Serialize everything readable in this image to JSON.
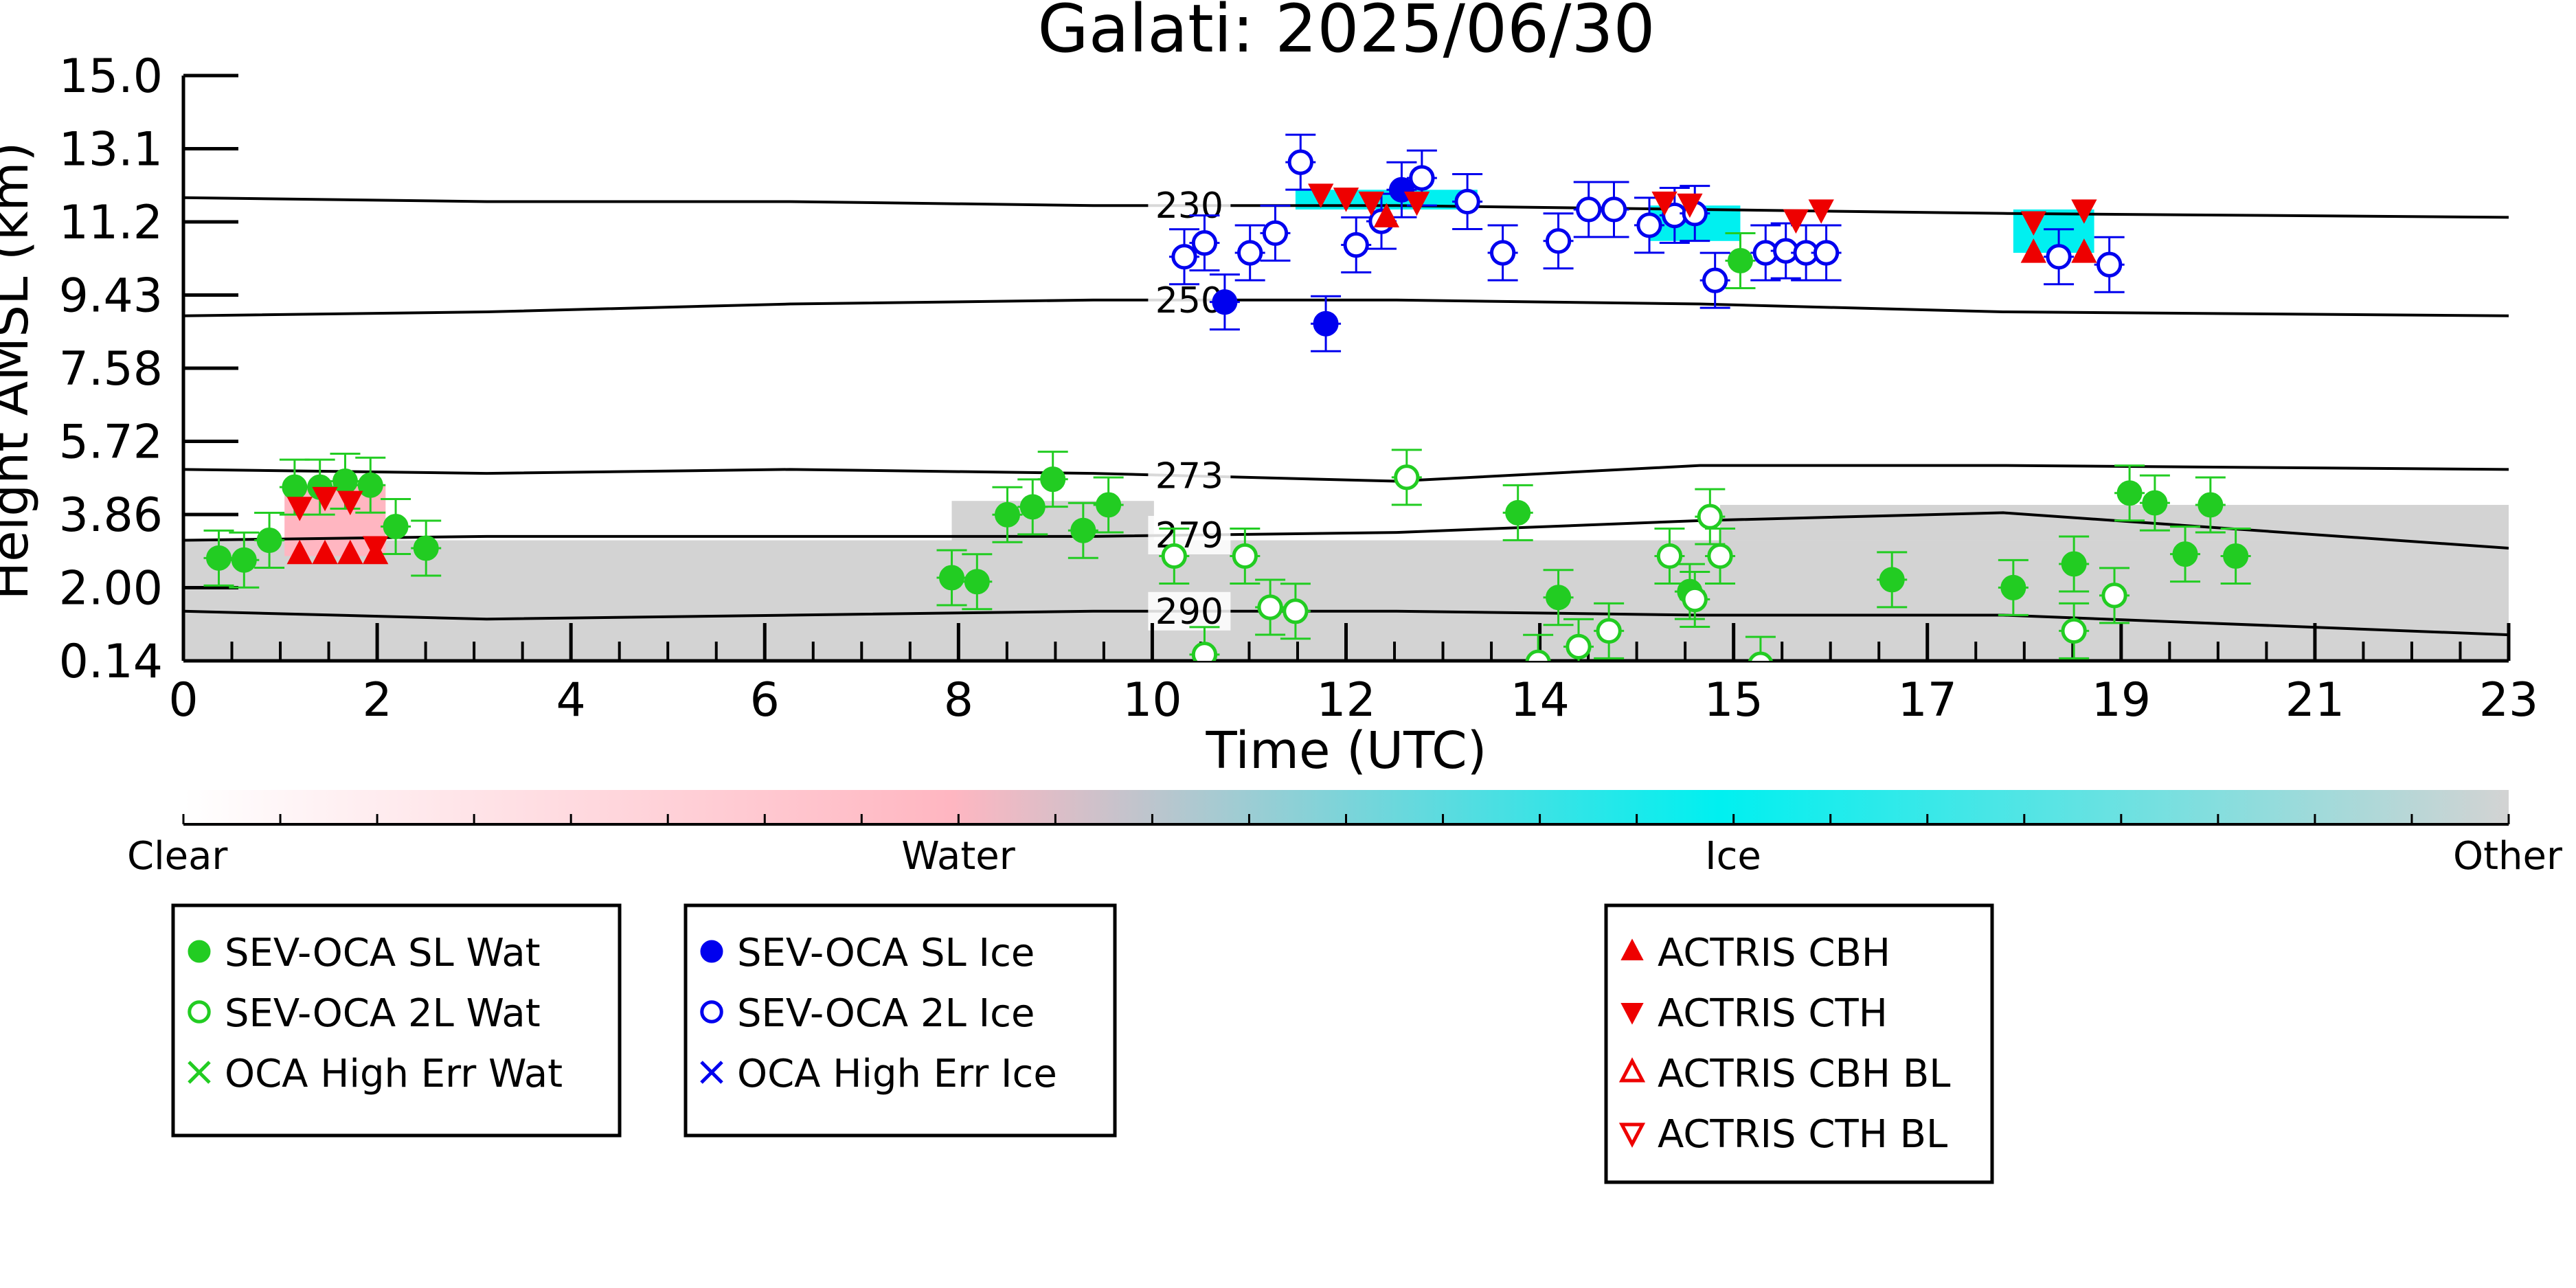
{
  "chart_data": {
    "type": "scatter",
    "title": "Galati: 2025/06/30",
    "xlabel": "Time (UTC)",
    "ylabel": "Height AMSL (km)",
    "xlim": [
      0,
      23
    ],
    "ylim": [
      0.14,
      15.0
    ],
    "x_ticks": [
      "0",
      "2",
      "4",
      "6",
      "8",
      "10",
      "12",
      "14",
      "15",
      "17",
      "19",
      "21",
      "23"
    ],
    "y_ticks": [
      "0.14",
      "2.00",
      "3.86",
      "5.72",
      "7.58",
      "9.43",
      "11.2",
      "13.1",
      "15.0"
    ],
    "colorbar": {
      "labels": [
        "Clear",
        "Water",
        "Ice",
        "Other"
      ],
      "colors": [
        "#ffffff",
        "#ffb6c1",
        "#00f0f0",
        "#d3d3d3"
      ]
    },
    "isotherms": [
      {
        "label": "230",
        "y": [
          11.9,
          11.8,
          11.8,
          11.7,
          11.7,
          11.6,
          11.5,
          11.4
        ]
      },
      {
        "label": "250",
        "y": [
          8.9,
          9.0,
          9.2,
          9.3,
          9.3,
          9.2,
          9.0,
          8.9
        ]
      },
      {
        "label": "273",
        "y": [
          5.0,
          4.9,
          5.0,
          4.9,
          4.7,
          5.1,
          5.1,
          5.0
        ]
      },
      {
        "label": "279",
        "y": [
          3.2,
          3.3,
          3.3,
          3.3,
          3.4,
          3.7,
          3.9,
          3.0
        ]
      },
      {
        "label": "290",
        "y": [
          1.4,
          1.2,
          1.3,
          1.4,
          1.4,
          1.3,
          1.3,
          0.8
        ]
      }
    ],
    "isotherm_x": [
      0,
      3,
      6,
      9,
      12,
      15,
      18,
      23
    ],
    "series": [
      {
        "name": "SEV-OCA SL Wat",
        "color": "#22cc22",
        "marker": "filled-circle",
        "x": [
          0.35,
          0.6,
          0.85,
          1.1,
          1.35,
          1.6,
          1.85,
          2.1,
          2.4,
          7.6,
          7.85,
          8.15,
          8.4,
          8.6,
          8.9,
          9.15,
          13.2,
          13.6,
          14.9,
          15.4,
          16.9,
          18.1,
          18.7,
          19.25,
          19.5,
          19.8,
          20.05,
          20.3
        ],
        "y": [
          2.75,
          2.7,
          3.2,
          4.55,
          4.55,
          4.7,
          4.6,
          3.55,
          3.0,
          2.25,
          2.15,
          3.85,
          4.05,
          4.75,
          3.45,
          4.1,
          3.9,
          1.75,
          1.9,
          10.3,
          2.2,
          2.0,
          2.6,
          4.4,
          4.15,
          2.85,
          4.1,
          2.8
        ]
      },
      {
        "name": "SEV-OCA 2L Wat",
        "color": "#22cc22",
        "marker": "open-circle",
        "x": [
          9.8,
          10.1,
          10.5,
          10.75,
          11.0,
          12.1,
          13.4,
          13.8,
          14.1,
          14.7,
          14.95,
          15.1,
          15.2,
          15.6,
          18.7,
          19.1
        ],
        "y": [
          2.8,
          0.3,
          2.8,
          1.5,
          1.4,
          4.8,
          0.1,
          0.5,
          0.9,
          2.8,
          1.7,
          3.8,
          2.8,
          0.05,
          0.9,
          1.8
        ]
      },
      {
        "name": "OCA High Err Wat",
        "color": "#22cc22",
        "marker": "x",
        "x": [],
        "y": []
      },
      {
        "name": "SEV-OCA SL Ice",
        "color": "#0000ee",
        "marker": "filled-circle",
        "x": [
          10.3,
          11.3,
          12.05
        ],
        "y": [
          9.25,
          8.7,
          12.1
        ]
      },
      {
        "name": "SEV-OCA 2L Ice",
        "color": "#0000ee",
        "marker": "open-circle",
        "x": [
          9.9,
          10.1,
          10.55,
          10.8,
          11.05,
          11.6,
          11.85,
          12.25,
          12.7,
          13.05,
          13.6,
          13.9,
          14.15,
          14.5,
          14.75,
          14.95,
          15.15,
          15.65,
          15.85,
          16.05,
          16.25,
          18.55,
          19.05
        ],
        "y": [
          10.4,
          10.75,
          10.5,
          11.0,
          12.8,
          10.7,
          11.3,
          12.4,
          11.8,
          10.5,
          10.8,
          11.6,
          11.6,
          11.2,
          11.45,
          11.5,
          9.8,
          10.5,
          10.55,
          10.5,
          10.5,
          10.4,
          10.2
        ]
      },
      {
        "name": "OCA High Err Ice",
        "color": "#0000ee",
        "marker": "x",
        "x": [],
        "y": []
      },
      {
        "name": "ACTRIS CBH",
        "color": "#ee0000",
        "marker": "triangle-up",
        "x": [
          1.15,
          1.4,
          1.65,
          1.9,
          11.9,
          18.3,
          18.8
        ],
        "y": [
          2.85,
          2.85,
          2.85,
          2.85,
          11.4,
          10.5,
          10.5
        ]
      },
      {
        "name": "ACTRIS CTH",
        "color": "#ee0000",
        "marker": "triangle-down",
        "x": [
          1.15,
          1.4,
          1.65,
          1.9,
          11.25,
          11.5,
          11.75,
          12.2,
          14.65,
          14.9,
          15.95,
          16.2,
          18.3,
          18.8
        ],
        "y": [
          4.05,
          4.3,
          4.2,
          3.05,
          12.0,
          11.9,
          11.8,
          11.8,
          11.8,
          11.75,
          11.35,
          11.6,
          11.3,
          11.6
        ]
      },
      {
        "name": "ACTRIS CBH BL",
        "color": "#ee0000",
        "marker": "open-triangle-up",
        "x": [],
        "y": []
      },
      {
        "name": "ACTRIS CTH BL",
        "color": "#ee0000",
        "marker": "open-triangle-down",
        "x": [],
        "y": []
      }
    ],
    "legend": [
      [
        "SEV-OCA SL Wat",
        "SEV-OCA 2L Wat",
        "OCA High Err Wat"
      ],
      [
        "SEV-OCA SL Ice",
        "SEV-OCA 2L Ice",
        "OCA High Err Ice"
      ],
      [
        "ACTRIS CBH",
        "ACTRIS CTH",
        "ACTRIS CBH BL",
        "ACTRIS CTH BL"
      ]
    ]
  }
}
